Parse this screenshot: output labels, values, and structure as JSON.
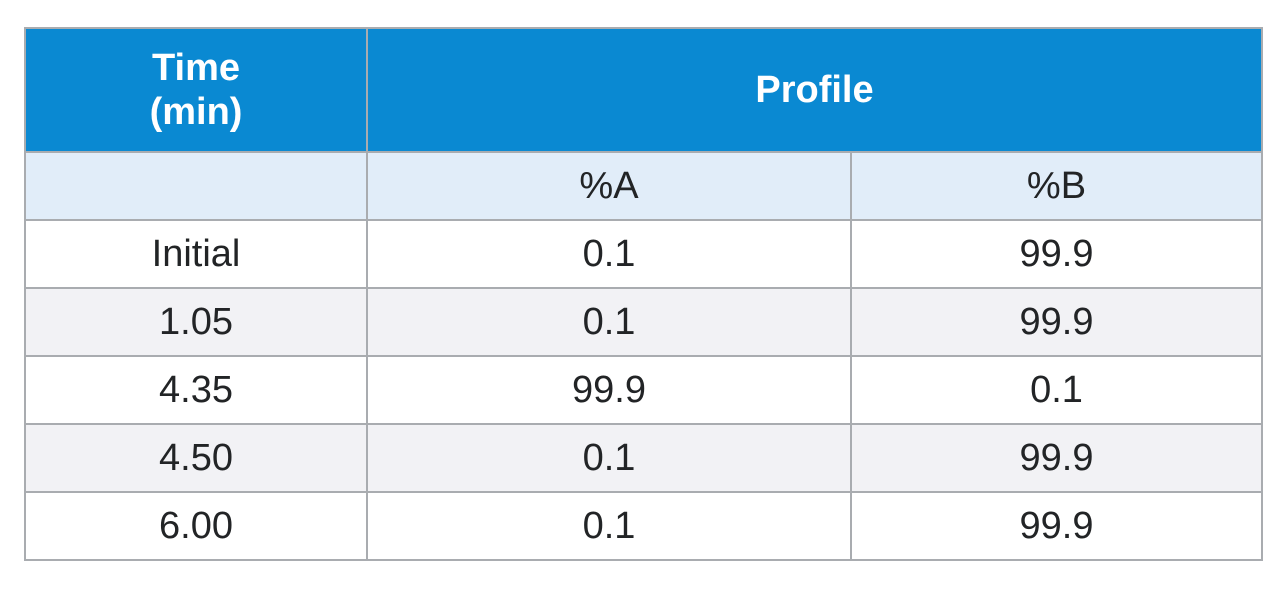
{
  "table": {
    "header": {
      "time_label": "Time\n(min)",
      "profile_label": "Profile"
    },
    "subheader": {
      "blank": "",
      "col_a": "%A",
      "col_b": "%B"
    },
    "rows": [
      {
        "time": "Initial",
        "a": "0.1",
        "b": "99.9"
      },
      {
        "time": "1.05",
        "a": "0.1",
        "b": "99.9"
      },
      {
        "time": "4.35",
        "a": "99.9",
        "b": "0.1"
      },
      {
        "time": "4.50",
        "a": "0.1",
        "b": "99.9"
      },
      {
        "time": "6.00",
        "a": "0.1",
        "b": "99.9"
      }
    ]
  },
  "colors": {
    "header_bg": "#0a89d2",
    "subheader_bg": "#e1edf9",
    "alt_row_bg": "#f2f2f5",
    "border": "#a9acb0"
  }
}
